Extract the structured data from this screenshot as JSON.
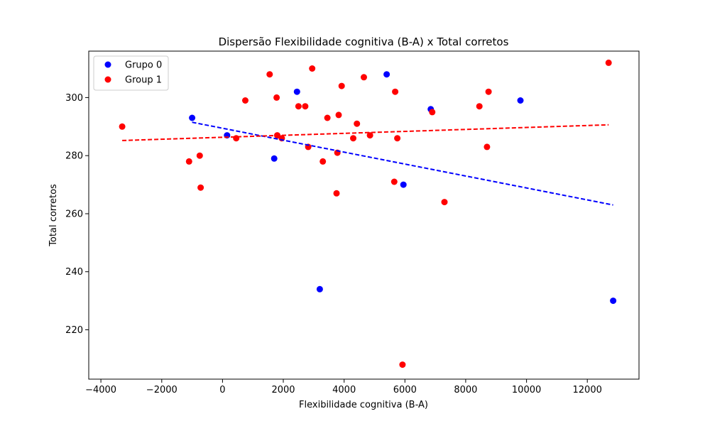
{
  "chart_data": {
    "type": "scatter",
    "title": "Dispersão Flexibilidade cognitiva (B-A) x Total corretos",
    "xlabel": "Flexibilidade cognitiva (B-A)",
    "ylabel": "Total corretos",
    "xlim": [
      -4400,
      13700
    ],
    "ylim": [
      203,
      316
    ],
    "xticks": [
      -4000,
      -2000,
      0,
      2000,
      4000,
      6000,
      8000,
      10000,
      12000
    ],
    "yticks": [
      220,
      240,
      260,
      280,
      300
    ],
    "grid": false,
    "legend_position": "top-left",
    "series": [
      {
        "name": "Grupo 0",
        "color": "#0000ff",
        "points": [
          [
            -1000,
            293
          ],
          [
            150,
            287
          ],
          [
            1700,
            279
          ],
          [
            2450,
            302
          ],
          [
            3200,
            234
          ],
          [
            5400,
            308
          ],
          [
            5950,
            270
          ],
          [
            6850,
            296
          ],
          [
            9800,
            299
          ],
          [
            12850,
            230
          ]
        ],
        "fit": {
          "x0": -1000,
          "y0": 291.5,
          "x1": 12850,
          "y1": 263
        }
      },
      {
        "name": "Group 1",
        "color": "#ff0000",
        "points": [
          [
            -3300,
            290
          ],
          [
            -1100,
            278
          ],
          [
            -750,
            280
          ],
          [
            -720,
            269
          ],
          [
            450,
            286
          ],
          [
            750,
            299
          ],
          [
            1550,
            308
          ],
          [
            1780,
            300
          ],
          [
            1800,
            287
          ],
          [
            1950,
            286
          ],
          [
            2500,
            297
          ],
          [
            2720,
            297
          ],
          [
            2820,
            283
          ],
          [
            2950,
            310
          ],
          [
            3300,
            278
          ],
          [
            3450,
            293
          ],
          [
            3750,
            267
          ],
          [
            3780,
            281
          ],
          [
            3820,
            294
          ],
          [
            3920,
            304
          ],
          [
            4300,
            286
          ],
          [
            4420,
            291
          ],
          [
            4650,
            307
          ],
          [
            4850,
            287
          ],
          [
            5650,
            271
          ],
          [
            5680,
            302
          ],
          [
            5750,
            286
          ],
          [
            5920,
            208
          ],
          [
            6900,
            295
          ],
          [
            7300,
            264
          ],
          [
            8450,
            297
          ],
          [
            8700,
            283
          ],
          [
            8750,
            302
          ],
          [
            12700,
            312
          ]
        ],
        "fit": {
          "x0": -3300,
          "y0": 285.2,
          "x1": 12700,
          "y1": 290.6
        }
      }
    ]
  }
}
